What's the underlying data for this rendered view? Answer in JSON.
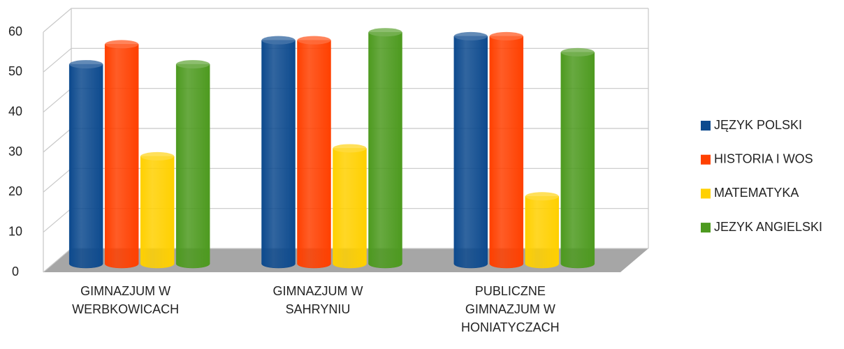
{
  "chart_data": {
    "type": "bar3d",
    "categories": [
      "GIMNAZJUM W WERBKOWICACH",
      "GIMNAZJUM W SAHRYNIU",
      "PUBLICZNE GIMNAZJUM W HONIATYCZACH"
    ],
    "series": [
      {
        "name": "JĘZYK POLSKI",
        "color": "#0d4a8e",
        "values": [
          49,
          55,
          56
        ]
      },
      {
        "name": "HISTORIA I WOS",
        "color": "#ff4000",
        "values": [
          54,
          55,
          56
        ]
      },
      {
        "name": "MATEMATYKA",
        "color": "#ffd000",
        "values": [
          26,
          28,
          16
        ]
      },
      {
        "name": "JEZYK ANGIELSKI",
        "color": "#4d9a1f",
        "values": [
          49,
          57,
          52
        ]
      }
    ],
    "ylim": [
      0,
      60
    ],
    "yticks": [
      0,
      10,
      20,
      30,
      40,
      50,
      60
    ],
    "grid": true,
    "legend": "right"
  }
}
